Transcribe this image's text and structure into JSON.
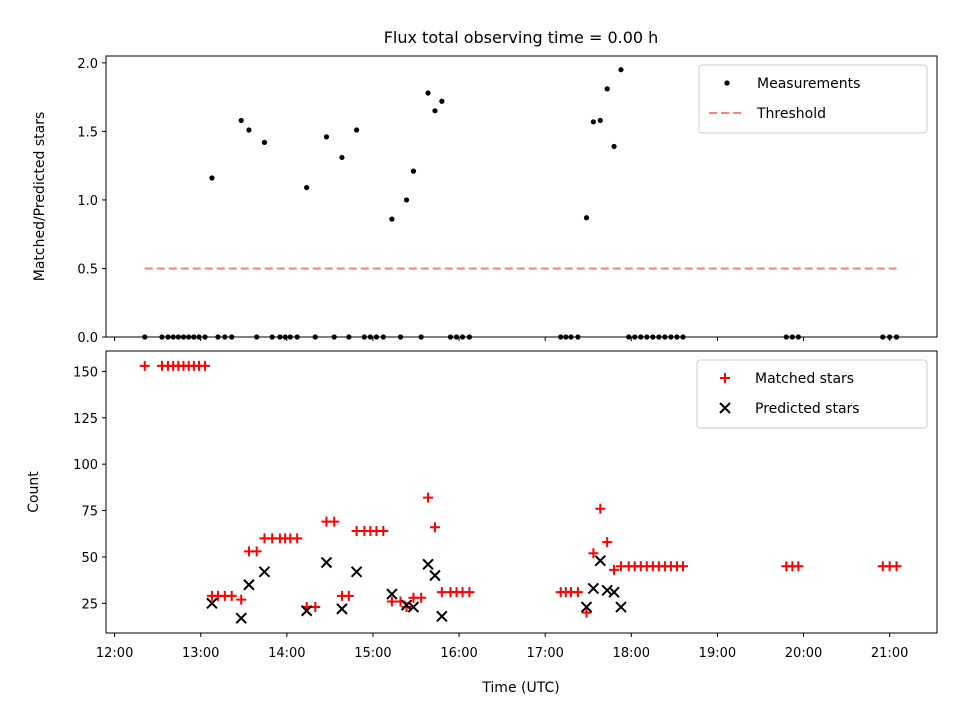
{
  "figure": {
    "title": "Flux total observing time = 0.00 h",
    "xlabel": "Time (UTC)"
  },
  "chart_data": [
    {
      "type": "scatter",
      "ylabel": "Matched/Predicted stars",
      "xlim": [
        11.9,
        21.55
      ],
      "ylim": [
        0,
        2.05
      ],
      "yticks": [
        0.0,
        0.5,
        1.0,
        1.5,
        2.0
      ],
      "ytick_labels": [
        "0.0",
        "0.5",
        "1.0",
        "1.5",
        "2.0"
      ],
      "legend_position": "top-right",
      "series": [
        {
          "name": "Measurements",
          "marker": "dot",
          "color": "#000000",
          "points": [
            [
              12.35,
              0.0
            ],
            [
              12.55,
              0.0
            ],
            [
              12.62,
              0.0
            ],
            [
              12.68,
              0.0
            ],
            [
              12.74,
              0.0
            ],
            [
              12.8,
              0.0
            ],
            [
              12.86,
              0.0
            ],
            [
              12.92,
              0.0
            ],
            [
              12.98,
              0.0
            ],
            [
              13.05,
              0.0
            ],
            [
              13.13,
              1.16
            ],
            [
              13.2,
              0.0
            ],
            [
              13.28,
              0.0
            ],
            [
              13.36,
              0.0
            ],
            [
              13.47,
              1.58
            ],
            [
              13.56,
              1.51
            ],
            [
              13.65,
              0.0
            ],
            [
              13.74,
              1.42
            ],
            [
              13.83,
              0.0
            ],
            [
              13.92,
              0.0
            ],
            [
              13.98,
              0.0
            ],
            [
              14.04,
              0.0
            ],
            [
              14.12,
              0.0
            ],
            [
              14.23,
              1.09
            ],
            [
              14.33,
              0.0
            ],
            [
              14.46,
              1.46
            ],
            [
              14.55,
              0.0
            ],
            [
              14.64,
              1.31
            ],
            [
              14.72,
              0.0
            ],
            [
              14.81,
              1.51
            ],
            [
              14.9,
              0.0
            ],
            [
              14.97,
              0.0
            ],
            [
              15.04,
              0.0
            ],
            [
              15.12,
              0.0
            ],
            [
              15.22,
              0.86
            ],
            [
              15.32,
              0.0
            ],
            [
              15.39,
              1.0
            ],
            [
              15.47,
              1.21
            ],
            [
              15.56,
              0.0
            ],
            [
              15.64,
              1.78
            ],
            [
              15.72,
              1.65
            ],
            [
              15.8,
              1.72
            ],
            [
              15.9,
              0.0
            ],
            [
              15.97,
              0.0
            ],
            [
              16.04,
              0.0
            ],
            [
              16.12,
              0.0
            ],
            [
              17.18,
              0.0
            ],
            [
              17.24,
              0.0
            ],
            [
              17.3,
              0.0
            ],
            [
              17.38,
              0.0
            ],
            [
              17.48,
              0.87
            ],
            [
              17.56,
              1.57
            ],
            [
              17.64,
              1.58
            ],
            [
              17.72,
              1.81
            ],
            [
              17.8,
              1.39
            ],
            [
              17.88,
              1.95
            ],
            [
              17.97,
              0.0
            ],
            [
              18.04,
              0.0
            ],
            [
              18.11,
              0.0
            ],
            [
              18.18,
              0.0
            ],
            [
              18.25,
              0.0
            ],
            [
              18.32,
              0.0
            ],
            [
              18.39,
              0.0
            ],
            [
              18.46,
              0.0
            ],
            [
              18.53,
              0.0
            ],
            [
              18.6,
              0.0
            ],
            [
              19.8,
              0.0
            ],
            [
              19.87,
              0.0
            ],
            [
              19.94,
              0.0
            ],
            [
              20.92,
              0.0
            ],
            [
              21.0,
              0.0
            ],
            [
              21.08,
              0.0
            ]
          ]
        },
        {
          "name": "Threshold",
          "marker": "dashed-line",
          "color": "#ff7f7f",
          "points": [
            [
              12.35,
              0.5
            ],
            [
              21.08,
              0.5
            ]
          ]
        }
      ]
    },
    {
      "type": "scatter",
      "ylabel": "Count",
      "xlim": [
        11.9,
        21.55
      ],
      "ylim": [
        9,
        161
      ],
      "yticks": [
        25,
        50,
        75,
        100,
        125,
        150
      ],
      "ytick_labels": [
        "25",
        "50",
        "75",
        "100",
        "125",
        "150"
      ],
      "xticks": [
        12,
        13,
        14,
        15,
        16,
        17,
        18,
        19,
        20,
        21
      ],
      "xtick_labels": [
        "12:00",
        "13:00",
        "14:00",
        "15:00",
        "16:00",
        "17:00",
        "18:00",
        "19:00",
        "20:00",
        "21:00"
      ],
      "legend_position": "top-right",
      "series": [
        {
          "name": "Matched stars",
          "marker": "plus",
          "color": "#ff0000",
          "points": [
            [
              12.35,
              153
            ],
            [
              12.55,
              153
            ],
            [
              12.62,
              153
            ],
            [
              12.68,
              153
            ],
            [
              12.74,
              153
            ],
            [
              12.8,
              153
            ],
            [
              12.86,
              153
            ],
            [
              12.92,
              153
            ],
            [
              12.98,
              153
            ],
            [
              13.05,
              153
            ],
            [
              13.13,
              29
            ],
            [
              13.2,
              29
            ],
            [
              13.28,
              29
            ],
            [
              13.36,
              29
            ],
            [
              13.47,
              27
            ],
            [
              13.56,
              53
            ],
            [
              13.65,
              53
            ],
            [
              13.74,
              60
            ],
            [
              13.83,
              60
            ],
            [
              13.92,
              60
            ],
            [
              13.98,
              60
            ],
            [
              14.04,
              60
            ],
            [
              14.12,
              60
            ],
            [
              14.23,
              23
            ],
            [
              14.33,
              23
            ],
            [
              14.46,
              69
            ],
            [
              14.55,
              69
            ],
            [
              14.64,
              29
            ],
            [
              14.72,
              29
            ],
            [
              14.81,
              64
            ],
            [
              14.9,
              64
            ],
            [
              14.97,
              64
            ],
            [
              15.04,
              64
            ],
            [
              15.12,
              64
            ],
            [
              15.22,
              26
            ],
            [
              15.32,
              26
            ],
            [
              15.39,
              23
            ],
            [
              15.47,
              28
            ],
            [
              15.56,
              28
            ],
            [
              15.64,
              82
            ],
            [
              15.72,
              66
            ],
            [
              15.8,
              31
            ],
            [
              15.9,
              31
            ],
            [
              15.97,
              31
            ],
            [
              16.04,
              31
            ],
            [
              16.12,
              31
            ],
            [
              17.18,
              31
            ],
            [
              17.24,
              31
            ],
            [
              17.3,
              31
            ],
            [
              17.38,
              31
            ],
            [
              17.48,
              20
            ],
            [
              17.56,
              52
            ],
            [
              17.64,
              76
            ],
            [
              17.72,
              58
            ],
            [
              17.8,
              43
            ],
            [
              17.88,
              45
            ],
            [
              17.97,
              45
            ],
            [
              18.04,
              45
            ],
            [
              18.11,
              45
            ],
            [
              18.18,
              45
            ],
            [
              18.25,
              45
            ],
            [
              18.32,
              45
            ],
            [
              18.39,
              45
            ],
            [
              18.46,
              45
            ],
            [
              18.53,
              45
            ],
            [
              18.6,
              45
            ],
            [
              19.8,
              45
            ],
            [
              19.87,
              45
            ],
            [
              19.94,
              45
            ],
            [
              20.92,
              45
            ],
            [
              21.0,
              45
            ],
            [
              21.08,
              45
            ]
          ]
        },
        {
          "name": "Predicted stars",
          "marker": "x",
          "color": "#000000",
          "points": [
            [
              13.13,
              25
            ],
            [
              13.47,
              17
            ],
            [
              13.56,
              35
            ],
            [
              13.74,
              42
            ],
            [
              14.23,
              21
            ],
            [
              14.46,
              47
            ],
            [
              14.64,
              22
            ],
            [
              14.81,
              42
            ],
            [
              15.22,
              30
            ],
            [
              15.39,
              24
            ],
            [
              15.47,
              23
            ],
            [
              15.64,
              46
            ],
            [
              15.72,
              40
            ],
            [
              15.8,
              18
            ],
            [
              17.48,
              23
            ],
            [
              17.56,
              33
            ],
            [
              17.64,
              48
            ],
            [
              17.72,
              32
            ],
            [
              17.8,
              31
            ],
            [
              17.88,
              23
            ]
          ]
        }
      ]
    }
  ]
}
